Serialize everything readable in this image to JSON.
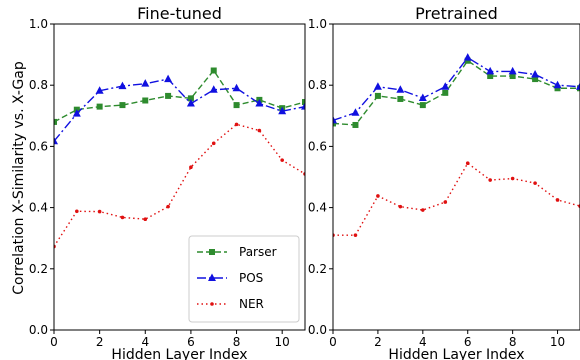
{
  "shared": {
    "ylabel": "Correlation X-Similarity vs. X-Gap",
    "xlabel": "Hidden Layer Index"
  },
  "legend": [
    "Parser",
    "POS",
    "NER"
  ],
  "series_colors": {
    "Parser": "#2e8b2e",
    "POS": "#1010e0",
    "NER": "#e01010"
  },
  "chart_data": [
    {
      "type": "line",
      "title": "Fine-tuned",
      "xlabel": "Hidden Layer Index",
      "ylabel": "Correlation X-Similarity vs. X-Gap",
      "x": [
        0,
        1,
        2,
        3,
        4,
        5,
        6,
        7,
        8,
        9,
        10,
        11
      ],
      "xlim": [
        0,
        11
      ],
      "ylim": [
        0.0,
        1.0
      ],
      "xticks": [
        0,
        2,
        4,
        6,
        8,
        10
      ],
      "yticks": [
        0.0,
        0.2,
        0.4,
        0.6,
        0.8,
        1.0
      ],
      "series": [
        {
          "name": "Parser",
          "values": [
            0.68,
            0.72,
            0.73,
            0.735,
            0.75,
            0.765,
            0.757,
            0.848,
            0.735,
            0.752,
            0.725,
            0.745
          ]
        },
        {
          "name": "POS",
          "values": [
            0.617,
            0.707,
            0.782,
            0.797,
            0.805,
            0.82,
            0.74,
            0.785,
            0.79,
            0.74,
            0.715,
            0.73
          ]
        },
        {
          "name": "NER",
          "values": [
            0.273,
            0.388,
            0.387,
            0.368,
            0.362,
            0.403,
            0.532,
            0.61,
            0.672,
            0.652,
            0.555,
            0.51
          ]
        }
      ],
      "legend_position": "lower-right"
    },
    {
      "type": "line",
      "title": "Pretrained",
      "xlabel": "Hidden Layer Index",
      "ylabel": "",
      "x": [
        0,
        1,
        2,
        3,
        4,
        5,
        6,
        7,
        8,
        9,
        10,
        11
      ],
      "xlim": [
        0,
        11
      ],
      "ylim": [
        0.0,
        1.0
      ],
      "xticks": [
        0,
        2,
        4,
        6,
        8,
        10
      ],
      "yticks": [
        0.0,
        0.2,
        0.4,
        0.6,
        0.8,
        1.0
      ],
      "series": [
        {
          "name": "Parser",
          "values": [
            0.675,
            0.67,
            0.765,
            0.755,
            0.735,
            0.775,
            0.88,
            0.83,
            0.83,
            0.82,
            0.79,
            0.79
          ]
        },
        {
          "name": "POS",
          "values": [
            0.685,
            0.71,
            0.795,
            0.785,
            0.758,
            0.795,
            0.89,
            0.845,
            0.845,
            0.835,
            0.8,
            0.795
          ]
        },
        {
          "name": "NER",
          "values": [
            0.31,
            0.31,
            0.438,
            0.403,
            0.392,
            0.418,
            0.545,
            0.49,
            0.495,
            0.48,
            0.425,
            0.405
          ]
        }
      ]
    }
  ]
}
